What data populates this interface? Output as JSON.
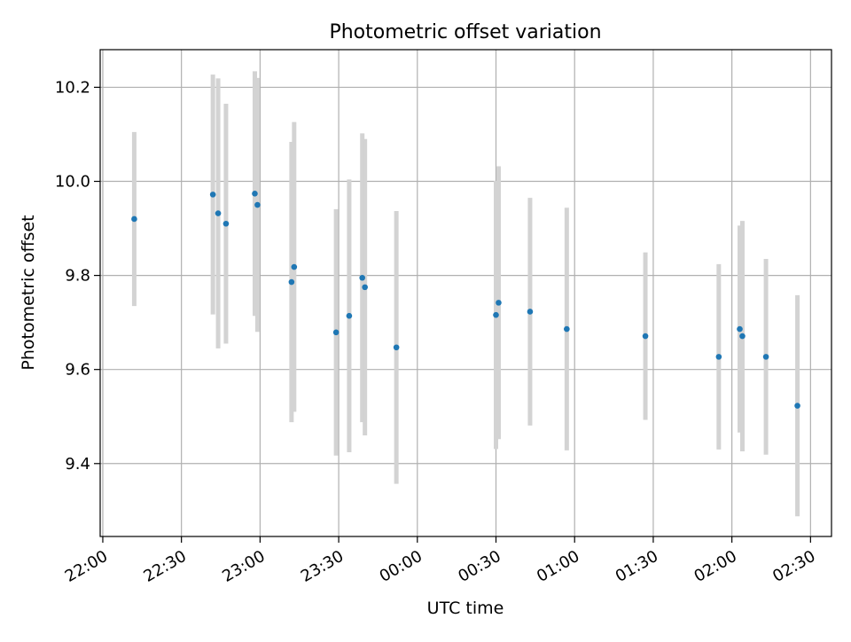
{
  "chart_data": {
    "type": "scatter",
    "title": "Photometric offset variation",
    "xlabel": "UTC time",
    "ylabel": "Photometric offset",
    "xlim": [
      "21:59",
      "02:38"
    ],
    "ylim": [
      9.245,
      10.28
    ],
    "x_ticks": [
      "22:00",
      "22:30",
      "23:00",
      "23:30",
      "00:00",
      "00:30",
      "01:00",
      "01:30",
      "02:00",
      "02:30"
    ],
    "y_ticks": [
      "9.4",
      "9.6",
      "9.8",
      "10.0",
      "10.2"
    ],
    "grid": true,
    "series": [
      {
        "marker_color": "#1f77b4",
        "errorbar_color": "#d3d3d3",
        "points": [
          {
            "t": "22:12",
            "y": 9.92,
            "err": 0.185
          },
          {
            "t": "22:42",
            "y": 9.972,
            "err": 0.255
          },
          {
            "t": "22:44",
            "y": 9.932,
            "err": 0.287
          },
          {
            "t": "22:47",
            "y": 9.91,
            "err": 0.255
          },
          {
            "t": "22:58",
            "y": 9.974,
            "err": 0.26
          },
          {
            "t": "22:59",
            "y": 9.95,
            "err": 0.27
          },
          {
            "t": "23:12",
            "y": 9.786,
            "err": 0.298
          },
          {
            "t": "23:13",
            "y": 9.818,
            "err": 0.308
          },
          {
            "t": "23:29",
            "y": 9.679,
            "err": 0.262
          },
          {
            "t": "23:34",
            "y": 9.714,
            "err": 0.29
          },
          {
            "t": "23:39",
            "y": 9.795,
            "err": 0.307
          },
          {
            "t": "23:40",
            "y": 9.775,
            "err": 0.315
          },
          {
            "t": "23:52",
            "y": 9.647,
            "err": 0.29
          },
          {
            "t": "00:30",
            "y": 9.716,
            "err": 0.285
          },
          {
            "t": "00:31",
            "y": 9.742,
            "err": 0.29
          },
          {
            "t": "00:43",
            "y": 9.723,
            "err": 0.242
          },
          {
            "t": "00:57",
            "y": 9.686,
            "err": 0.258
          },
          {
            "t": "01:27",
            "y": 9.671,
            "err": 0.178
          },
          {
            "t": "01:55",
            "y": 9.627,
            "err": 0.197
          },
          {
            "t": "02:03",
            "y": 9.686,
            "err": 0.22
          },
          {
            "t": "02:04",
            "y": 9.671,
            "err": 0.245
          },
          {
            "t": "02:13",
            "y": 9.627,
            "err": 0.208
          },
          {
            "t": "02:25",
            "y": 9.523,
            "err": 0.235
          }
        ]
      }
    ]
  }
}
